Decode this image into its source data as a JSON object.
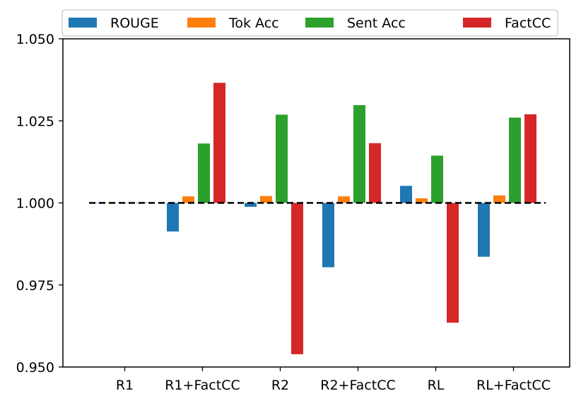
{
  "chart_data": {
    "type": "bar",
    "title": "",
    "xlabel": "",
    "ylabel": "",
    "categories": [
      "R1",
      "R1+FactCC",
      "R2",
      "R2+FactCC",
      "RL",
      "RL+FactCC"
    ],
    "series": [
      {
        "name": "ROUGE",
        "color": "#1f77b4",
        "values": [
          1.0,
          0.9913,
          0.9988,
          0.9804,
          1.0052,
          0.9836
        ]
      },
      {
        "name": "Tok Acc",
        "color": "#ff7f0e",
        "values": [
          1.0,
          1.002,
          1.0021,
          1.002,
          1.0014,
          1.0023
        ]
      },
      {
        "name": "Sent Acc",
        "color": "#2ca02c",
        "values": [
          1.0,
          1.0181,
          1.0269,
          1.0298,
          1.0144,
          1.026
        ]
      },
      {
        "name": "FactCC",
        "color": "#d62728",
        "values": [
          1.0,
          1.0366,
          0.9539,
          1.0182,
          0.9635,
          1.027
        ]
      }
    ],
    "ylim": [
      0.95,
      1.05
    ],
    "yticks": [
      "0.950",
      "0.975",
      "1.000",
      "1.025",
      "1.050"
    ],
    "reference_line": {
      "y": 1.0,
      "style": "dashed",
      "color": "#000000"
    },
    "grid": false,
    "legend": {
      "position": "top",
      "ncol": 4
    }
  }
}
